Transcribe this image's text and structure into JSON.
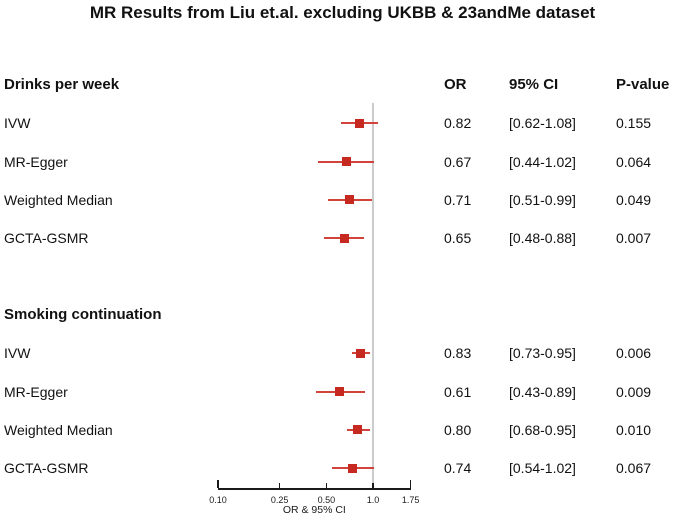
{
  "title": "MR Results from Liu et.al. excluding UKBB & 23andMe dataset",
  "table": {
    "col_headers": {
      "or": "OR",
      "ci": "95% CI",
      "p": "P-value"
    }
  },
  "axis": {
    "label": "OR & 95% CI",
    "tick_labels": [
      "0.10",
      "0.25",
      "0.50",
      "1.0",
      "1.75"
    ]
  },
  "colors": {
    "marker": "#c62920",
    "whisker": "#d0443c",
    "refline": "#cccccc",
    "axis": "#1a1a1a",
    "text": "#111111"
  },
  "chart_data": {
    "type": "scatter",
    "variant": "forest-plot",
    "title": "MR Results from Liu et.al. excluding UKBB & 23andMe dataset",
    "xlabel": "OR & 95% CI",
    "xscale": "log10",
    "xticks": [
      0.1,
      0.25,
      0.5,
      1.0,
      1.75
    ],
    "xlim": [
      0.1,
      1.75
    ],
    "refline_x": 1.0,
    "legend": "none",
    "grid": false,
    "groups": [
      {
        "name": "Drinks per week",
        "points": [
          {
            "label": "IVW",
            "or": 0.82,
            "ci": [
              0.62,
              1.08
            ],
            "p": 0.155,
            "display": {
              "or": "0.82",
              "ci": "[0.62-1.08]",
              "p": "0.155"
            }
          },
          {
            "label": "MR-Egger",
            "or": 0.67,
            "ci": [
              0.44,
              1.02
            ],
            "p": 0.064,
            "display": {
              "or": "0.67",
              "ci": "[0.44-1.02]",
              "p": "0.064"
            }
          },
          {
            "label": "Weighted Median",
            "or": 0.71,
            "ci": [
              0.51,
              0.99
            ],
            "p": 0.049,
            "display": {
              "or": "0.71",
              "ci": "[0.51-0.99]",
              "p": "0.049"
            }
          },
          {
            "label": "GCTA-GSMR",
            "or": 0.65,
            "ci": [
              0.48,
              0.88
            ],
            "p": 0.007,
            "display": {
              "or": "0.65",
              "ci": "[0.48-0.88]",
              "p": "0.007"
            }
          }
        ]
      },
      {
        "name": "Smoking continuation",
        "points": [
          {
            "label": "IVW",
            "or": 0.83,
            "ci": [
              0.73,
              0.95
            ],
            "p": 0.006,
            "display": {
              "or": "0.83",
              "ci": "[0.73-0.95]",
              "p": "0.006"
            }
          },
          {
            "label": "MR-Egger",
            "or": 0.61,
            "ci": [
              0.43,
              0.89
            ],
            "p": 0.009,
            "display": {
              "or": "0.61",
              "ci": "[0.43-0.89]",
              "p": "0.009"
            }
          },
          {
            "label": "Weighted Median",
            "or": 0.8,
            "ci": [
              0.68,
              0.95
            ],
            "p": 0.01,
            "display": {
              "or": "0.80",
              "ci": "[0.68-0.95]",
              "p": "0.010"
            }
          },
          {
            "label": "GCTA-GSMR",
            "or": 0.74,
            "ci": [
              0.54,
              1.02
            ],
            "p": 0.067,
            "display": {
              "or": "0.74",
              "ci": "[0.54-1.02]",
              "p": "0.067"
            }
          }
        ]
      }
    ]
  }
}
